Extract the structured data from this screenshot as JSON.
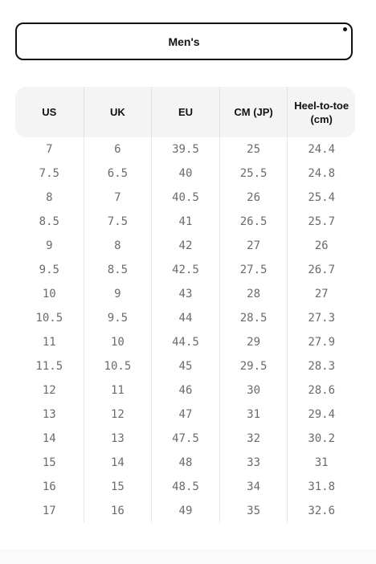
{
  "tab": {
    "label": "Men's"
  },
  "table": {
    "headers": [
      "US",
      "UK",
      "EU",
      "CM (JP)",
      "Heel-to-toe (cm)"
    ],
    "rows": [
      [
        "7",
        "6",
        "39.5",
        "25",
        "24.4"
      ],
      [
        "7.5",
        "6.5",
        "40",
        "25.5",
        "24.8"
      ],
      [
        "8",
        "7",
        "40.5",
        "26",
        "25.4"
      ],
      [
        "8.5",
        "7.5",
        "41",
        "26.5",
        "25.7"
      ],
      [
        "9",
        "8",
        "42",
        "27",
        "26"
      ],
      [
        "9.5",
        "8.5",
        "42.5",
        "27.5",
        "26.7"
      ],
      [
        "10",
        "9",
        "43",
        "28",
        "27"
      ],
      [
        "10.5",
        "9.5",
        "44",
        "28.5",
        "27.3"
      ],
      [
        "11",
        "10",
        "44.5",
        "29",
        "27.9"
      ],
      [
        "11.5",
        "10.5",
        "45",
        "29.5",
        "28.3"
      ],
      [
        "12",
        "11",
        "46",
        "30",
        "28.6"
      ],
      [
        "13",
        "12",
        "47",
        "31",
        "29.4"
      ],
      [
        "14",
        "13",
        "47.5",
        "32",
        "30.2"
      ],
      [
        "15",
        "14",
        "48",
        "33",
        "31"
      ],
      [
        "16",
        "15",
        "48.5",
        "34",
        "31.8"
      ],
      [
        "17",
        "16",
        "49",
        "35",
        "32.6"
      ]
    ]
  }
}
